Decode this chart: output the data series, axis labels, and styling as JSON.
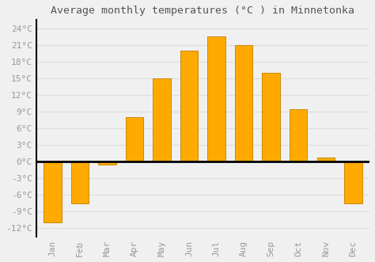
{
  "title": "Average monthly temperatures (°C ) in Minnetonka",
  "months": [
    "Jan",
    "Feb",
    "Mar",
    "Apr",
    "May",
    "Jun",
    "Jul",
    "Aug",
    "Sep",
    "Oct",
    "Nov",
    "Dec"
  ],
  "values": [
    -11,
    -7.5,
    -0.5,
    8,
    15,
    20,
    22.5,
    21,
    16,
    9.5,
    0.7,
    -7.5
  ],
  "bar_color": "#FFAA00",
  "bar_edge_color": "#CC8800",
  "background_color": "#F0F0F0",
  "grid_color": "#DDDDDD",
  "yticks": [
    -12,
    -9,
    -6,
    -3,
    0,
    3,
    6,
    9,
    12,
    15,
    18,
    21,
    24
  ],
  "ylim": [
    -13.5,
    25.5
  ],
  "title_fontsize": 9.5,
  "tick_fontsize": 8,
  "bar_width": 0.65
}
